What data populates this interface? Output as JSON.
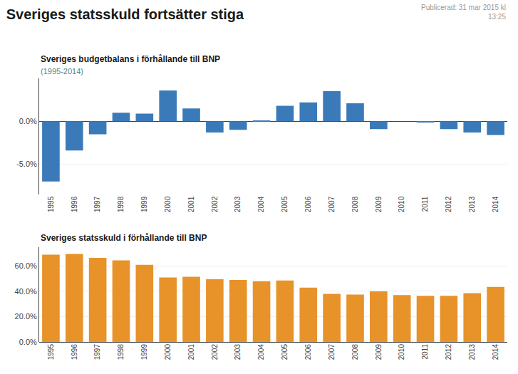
{
  "title": "Sveriges statsskuld fortsätter stiga",
  "annotations": [
    "Publicerad: 31 mar 2015 kl\n13:25"
  ],
  "chart_data": [
    {
      "type": "bar",
      "title": "Sveriges budgetbalans i förhållande till BNP",
      "subtitle": "(1995-2014)",
      "categories": [
        "1995",
        "1996",
        "1997",
        "1998",
        "1999",
        "2000",
        "2001",
        "2002",
        "2003",
        "2004",
        "2005",
        "2006",
        "2007",
        "2008",
        "2009",
        "2010",
        "2011",
        "2012",
        "2013",
        "2014"
      ],
      "values": [
        -7.0,
        -3.4,
        -1.5,
        1.0,
        0.9,
        3.6,
        1.5,
        -1.3,
        -1.0,
        0.1,
        1.8,
        2.2,
        3.5,
        2.1,
        -0.9,
        0.0,
        -0.1,
        -0.9,
        -1.3,
        -1.6
      ],
      "color": "#3a7ab9",
      "ylim": [
        -8.5,
        5.0
      ],
      "yticks": [
        {
          "value": -5.0,
          "label": "-5.0%"
        },
        {
          "value": 0.0,
          "label": "0.0%"
        }
      ],
      "grid": true
    },
    {
      "type": "bar",
      "title": "Sveriges statsskuld i förhållande till BNP",
      "categories": [
        "1995",
        "1996",
        "1997",
        "1998",
        "1999",
        "2000",
        "2001",
        "2002",
        "2003",
        "2004",
        "2005",
        "2006",
        "2007",
        "2008",
        "2009",
        "2010",
        "2011",
        "2012",
        "2013",
        "2014"
      ],
      "values": [
        69.0,
        69.5,
        66.5,
        64.5,
        61.0,
        51.0,
        51.5,
        49.5,
        49.0,
        48.0,
        48.5,
        43.0,
        38.0,
        37.5,
        40.0,
        37.0,
        36.5,
        36.5,
        38.5,
        43.5
      ],
      "color": "#e8922a",
      "ylim": [
        0,
        75
      ],
      "yticks": [
        {
          "value": 0.0,
          "label": "0.0%"
        },
        {
          "value": 20.0,
          "label": "20.0%"
        },
        {
          "value": 40.0,
          "label": "40.0%"
        },
        {
          "value": 60.0,
          "label": "60.0%"
        }
      ],
      "grid": true
    }
  ]
}
